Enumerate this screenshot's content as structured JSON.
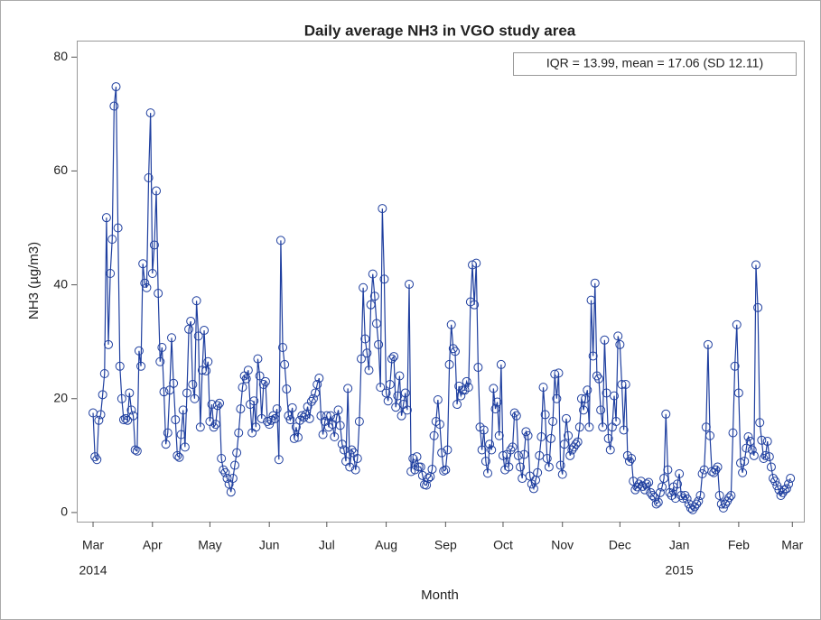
{
  "chart_data": {
    "type": "line",
    "title": "Daily average NH3 in VGO study area",
    "y_label": "NH3 (µg/m3)",
    "x_label": "Month",
    "annotation": "IQR = 13.99, mean = 17.06 (SD 12.11)",
    "xlim": [
      -8.5,
      371
    ],
    "ylim": [
      -1.6,
      82.9
    ],
    "yticks": [
      0,
      20,
      40,
      60,
      80
    ],
    "xticks": [
      {
        "value": 0,
        "label": "Mar"
      },
      {
        "value": 31,
        "label": "Apr"
      },
      {
        "value": 61,
        "label": "May"
      },
      {
        "value": 92,
        "label": "Jun"
      },
      {
        "value": 122,
        "label": "Jul"
      },
      {
        "value": 153,
        "label": "Aug"
      },
      {
        "value": 184,
        "label": "Sep"
      },
      {
        "value": 214,
        "label": "Oct"
      },
      {
        "value": 245,
        "label": "Nov"
      },
      {
        "value": 275,
        "label": "Dec"
      },
      {
        "value": 306,
        "label": "Jan"
      },
      {
        "value": 337,
        "label": "Feb"
      },
      {
        "value": 365,
        "label": "Mar"
      }
    ],
    "xtick_years": [
      {
        "value": 0,
        "label": "2014"
      },
      {
        "value": 306,
        "label": "2015"
      }
    ],
    "grid": false,
    "x": [
      0,
      1,
      2,
      3,
      4,
      5,
      6,
      7,
      8,
      9,
      10,
      11,
      12,
      13,
      14,
      15,
      16,
      17,
      18,
      19,
      20,
      21,
      22,
      23,
      24,
      25,
      26,
      27,
      28,
      29,
      30,
      31,
      32,
      33,
      34,
      35,
      36,
      37,
      38,
      39,
      40,
      41,
      42,
      43,
      44,
      45,
      46,
      47,
      48,
      49,
      50,
      51,
      52,
      53,
      54,
      55,
      56,
      57,
      58,
      59,
      60,
      61,
      62,
      63,
      64,
      65,
      66,
      67,
      68,
      69,
      70,
      71,
      72,
      73,
      74,
      75,
      76,
      77,
      78,
      79,
      80,
      81,
      82,
      83,
      84,
      85,
      86,
      87,
      88,
      89,
      90,
      91,
      92,
      93,
      94,
      95,
      96,
      97,
      98,
      99,
      100,
      101,
      102,
      103,
      104,
      105,
      106,
      107,
      108,
      109,
      110,
      111,
      112,
      113,
      114,
      115,
      116,
      117,
      118,
      119,
      120,
      121,
      122,
      123,
      124,
      125,
      126,
      127,
      128,
      129,
      130,
      131,
      132,
      133,
      134,
      135,
      136,
      137,
      138,
      139,
      140,
      141,
      142,
      143,
      144,
      145,
      146,
      147,
      148,
      149,
      150,
      151,
      152,
      153,
      154,
      155,
      156,
      157,
      158,
      159,
      160,
      161,
      162,
      163,
      164,
      165,
      166,
      167,
      168,
      169,
      170,
      171,
      172,
      173,
      174,
      175,
      176,
      177,
      178,
      179,
      180,
      181,
      182,
      183,
      184,
      185,
      186,
      187,
      188,
      189,
      190,
      191,
      192,
      193,
      194,
      195,
      196,
      197,
      198,
      199,
      200,
      201,
      202,
      203,
      204,
      205,
      206,
      207,
      208,
      209,
      210,
      211,
      212,
      213,
      214,
      215,
      216,
      217,
      218,
      219,
      220,
      221,
      222,
      223,
      224,
      225,
      226,
      227,
      228,
      229,
      230,
      231,
      232,
      233,
      234,
      235,
      236,
      237,
      238,
      239,
      240,
      241,
      242,
      243,
      244,
      245,
      246,
      247,
      248,
      249,
      250,
      251,
      252,
      253,
      254,
      255,
      256,
      257,
      258,
      259,
      260,
      261,
      262,
      263,
      264,
      265,
      266,
      267,
      268,
      269,
      270,
      271,
      272,
      273,
      274,
      275,
      276,
      277,
      278,
      279,
      280,
      281,
      282,
      283,
      284,
      285,
      286,
      287,
      288,
      289,
      290,
      291,
      292,
      293,
      294,
      295,
      296,
      297,
      298,
      299,
      300,
      301,
      302,
      303,
      304,
      305,
      306,
      307,
      308,
      309,
      310,
      311,
      312,
      313,
      314,
      315,
      316,
      317,
      318,
      319,
      320,
      321,
      322,
      323,
      324,
      325,
      326,
      327,
      328,
      329,
      330,
      331,
      332,
      333,
      334,
      335,
      336,
      337,
      338,
      339,
      340,
      341,
      342,
      343,
      344,
      345,
      346,
      347,
      348,
      349,
      350,
      351,
      352,
      353,
      354,
      355,
      356,
      357,
      358,
      359,
      360,
      361,
      362,
      363,
      364
    ],
    "series": [
      {
        "name": "NH3",
        "color": "#1f3f9f",
        "values": [
          17.5,
          9.8,
          9.3,
          16.2,
          17.2,
          20.7,
          24.4,
          51.8,
          29.5,
          42,
          48,
          71.4,
          74.8,
          50,
          25.7,
          20,
          16.3,
          16.5,
          16.2,
          21,
          18,
          17,
          11,
          10.8,
          28.4,
          25.7,
          43.7,
          40.3,
          39.5,
          58.8,
          70.2,
          42,
          47,
          56.5,
          38.5,
          26.5,
          29,
          21.2,
          12,
          14,
          21.5,
          30.7,
          22.7,
          16.3,
          10,
          9.7,
          13.7,
          18,
          11.5,
          21,
          32.2,
          33.6,
          22.5,
          20,
          37.2,
          31,
          15,
          25,
          32,
          24.9,
          26.5,
          16,
          19,
          15,
          15.5,
          18.8,
          19.2,
          9.5,
          7.5,
          7,
          6,
          5,
          3.6,
          6,
          8.3,
          10.5,
          14,
          18.2,
          22,
          24,
          23.5,
          25,
          19,
          14,
          19.6,
          15,
          27,
          24,
          16.5,
          22.5,
          23,
          16,
          15.5,
          16.2,
          17,
          16.5,
          18.2,
          9.3,
          47.8,
          29,
          26,
          21.7,
          17,
          16.3,
          18.4,
          13,
          15,
          13.2,
          16.2,
          17,
          16.7,
          17.2,
          18.6,
          16.5,
          19.5,
          20,
          21,
          22.5,
          23.6,
          17,
          13.7,
          16,
          17,
          15,
          17,
          15.5,
          13.3,
          16.5,
          18,
          15.3,
          12,
          11,
          9,
          21.8,
          8,
          11,
          10.5,
          7.5,
          9.5,
          16,
          27,
          39.5,
          30.5,
          28,
          25,
          36.5,
          41.9,
          38,
          33.2,
          29.5,
          22,
          53.4,
          41,
          21,
          19.6,
          22.5,
          27,
          27.4,
          18.5,
          20.5,
          24,
          17,
          19,
          21,
          18,
          40.1,
          7.2,
          9.5,
          7.5,
          9.8,
          8,
          8,
          6.5,
          4.9,
          4.8,
          6,
          6.3,
          7.6,
          13.5,
          16,
          19.8,
          15.5,
          10.5,
          7.3,
          7.5,
          11,
          26,
          33,
          28.8,
          28.3,
          19,
          22.2,
          20.5,
          21.5,
          21.5,
          23,
          22,
          37,
          43.5,
          36.5,
          43.8,
          25.5,
          15,
          11,
          14.5,
          9,
          6.9,
          12,
          11,
          21.8,
          18.2,
          19.4,
          13.5,
          26,
          10,
          7.5,
          10.2,
          8,
          11,
          11.5,
          17.5,
          17,
          10,
          8,
          6,
          10.2,
          14.2,
          13.5,
          6.4,
          5,
          4.2,
          5.7,
          7,
          10,
          13.3,
          22,
          17.2,
          9.5,
          8,
          13,
          16,
          24.3,
          20,
          24.5,
          8.3,
          6.7,
          12,
          16.5,
          13.5,
          10,
          11,
          11.5,
          12,
          12.4,
          15,
          20,
          18,
          20,
          21.5,
          15,
          37.3,
          27.5,
          40.3,
          24,
          23.5,
          18,
          15,
          30.3,
          21,
          13,
          11,
          15,
          20.5,
          16,
          31,
          29.5,
          22.5,
          14.5,
          22.5,
          10,
          9,
          9.5,
          5.5,
          4,
          4.5,
          5,
          5.5,
          4.6,
          4,
          5,
          5.3,
          3.5,
          3,
          2.7,
          1.5,
          1.8,
          3.5,
          4.5,
          6,
          17.3,
          7.5,
          3.5,
          3,
          4.5,
          2.5,
          5,
          6.8,
          3,
          2.5,
          3,
          2.4,
          1.5,
          0.8,
          0.5,
          1,
          1.5,
          2,
          3,
          6.8,
          7.5,
          15,
          29.5,
          13.5,
          7.2,
          7,
          7.5,
          8,
          3,
          1.5,
          0.8,
          1.5,
          2,
          2.6,
          3,
          14,
          25.7,
          33,
          21,
          8.7,
          7,
          9,
          11.3,
          13.3,
          12.5,
          11,
          10,
          43.5,
          36,
          15.8,
          12.7,
          9.5,
          10,
          12.5,
          9.8,
          8,
          6,
          5.5,
          4.7,
          4,
          3,
          3.5,
          4,
          4.2,
          5,
          6
        ]
      }
    ]
  }
}
